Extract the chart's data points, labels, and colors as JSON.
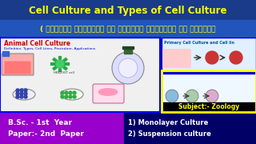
{
  "title_line1": "Cell Culture and Types of Cell Culture",
  "title_line2": "( कोशिका संवर्धन और कोशिका संवर्धन के प्रकार",
  "title_bg": "#1a3a8a",
  "title2_bg": "#2255bb",
  "title_color": "#ffff00",
  "left_header": "Animal Cell Culture",
  "left_subheader": "Definition, Types, Cell Lines, Procedure, Applications",
  "right_top_header": "Primary Cell Culture and Cell lin",
  "subject_label": "Subject:- Zoology",
  "subject_color": "#ffff00",
  "bottom_left_bg": "#9900cc",
  "bottom_left_line1": "B.Sc. - 1st  Year",
  "bottom_left_line2": "Paper:- 2nd  Paper",
  "bottom_left_color": "#ffffff",
  "bottom_right_bg": "#000066",
  "bottom_right_line1": "1) Monolayer Culture",
  "bottom_right_line2": "2) Suspension culture",
  "bottom_right_color": "#ffffff",
  "hex_label": "HEK293T cell",
  "border_color": "#0000ff"
}
